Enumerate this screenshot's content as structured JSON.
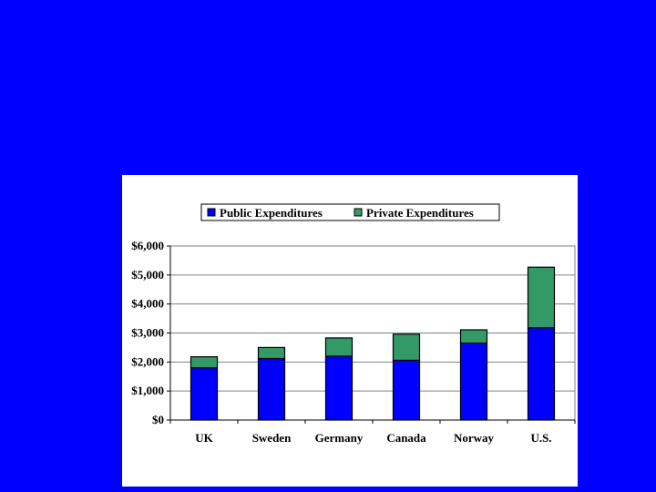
{
  "colors": {
    "background": "#0000FF",
    "public": "#0000FF",
    "private": "#339966",
    "gridline": "#808080",
    "plot_bg": "#FFFFFF"
  },
  "chart_data": {
    "type": "bar",
    "stacked": true,
    "title": "",
    "xlabel": "",
    "ylabel": "",
    "categories": [
      "UK",
      "Sweden",
      "Germany",
      "Canada",
      "Norway",
      "U.S."
    ],
    "series": [
      {
        "name": "Public Expenditures",
        "values": [
          1800,
          2120,
          2200,
          2060,
          2650,
          3180
        ]
      },
      {
        "name": "Private Expenditures",
        "values": [
          380,
          380,
          630,
          900,
          460,
          2090
        ]
      }
    ],
    "ylim": [
      0,
      6000
    ],
    "yticks": [
      0,
      1000,
      2000,
      3000,
      4000,
      5000,
      6000
    ],
    "ytick_labels": [
      "$0",
      "$1,000",
      "$2,000",
      "$3,000",
      "$4,000",
      "$5,000",
      "$6,000"
    ],
    "grid": true,
    "legend": "top"
  }
}
